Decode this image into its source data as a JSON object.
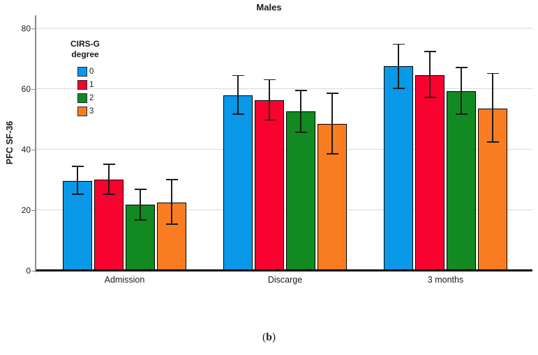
{
  "figure": {
    "caption": {
      "open": "(",
      "label": "b",
      "close": ")"
    }
  },
  "chart_data": {
    "type": "bar",
    "title": "Males",
    "xlabel": "",
    "ylabel": "PFC SF-36",
    "ylim": [
      0,
      80
    ],
    "yticks": [
      0,
      20,
      40,
      60,
      80
    ],
    "grid": true,
    "legend": {
      "title_lines": [
        "CIRS-G",
        "degree"
      ],
      "position": "upper-left-inside"
    },
    "categories": [
      "Admission",
      "Discarge",
      "3 months"
    ],
    "series": [
      {
        "name": "0",
        "color": "#0A98E8",
        "values": [
          29.7,
          57.9,
          67.4
        ],
        "err_low": [
          25.3,
          51.7,
          60.2
        ],
        "err_high": [
          34.5,
          64.4,
          74.7
        ]
      },
      {
        "name": "1",
        "color": "#F80230",
        "values": [
          30.1,
          56.3,
          64.6
        ],
        "err_low": [
          25.3,
          49.7,
          57.2
        ],
        "err_high": [
          35.2,
          63.0,
          72.4
        ]
      },
      {
        "name": "2",
        "color": "#128A22",
        "values": [
          21.8,
          52.6,
          59.3
        ],
        "err_low": [
          16.8,
          45.7,
          51.7
        ],
        "err_high": [
          26.9,
          59.5,
          67.1
        ]
      },
      {
        "name": "3",
        "color": "#F97D20",
        "values": [
          22.5,
          48.5,
          53.6
        ],
        "err_low": [
          15.4,
          38.6,
          42.5
        ],
        "err_high": [
          30.1,
          58.6,
          65.1
        ]
      }
    ],
    "colors": {
      "gridline": "#D8D8D8",
      "axis": "#8A8A8A",
      "baseline": "#000000",
      "error_bar": "#1A1A1A",
      "text": "#1A1A1A"
    }
  }
}
